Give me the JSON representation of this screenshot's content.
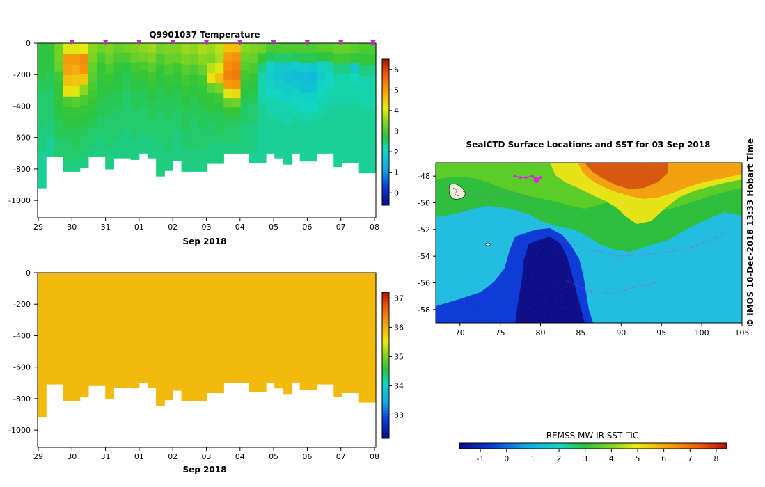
{
  "chart_data": [
    {
      "id": "temperature-section",
      "type": "heatmap",
      "title": "Q9901037  Temperature",
      "xlabel": "Sep 2018",
      "x_tick_labels": [
        "29",
        "30",
        "31",
        "01",
        "02",
        "03",
        "04",
        "05",
        "06",
        "07",
        "08"
      ],
      "y_tick_values": [
        0,
        -200,
        -400,
        -600,
        -800,
        -1000
      ],
      "ylim": [
        -1110,
        0
      ],
      "colorbar": {
        "min": -0.6,
        "max": 6.5,
        "ticks": [
          0,
          1,
          2,
          3,
          4,
          5,
          6
        ]
      },
      "profile_marker_days": [
        1,
        2,
        3,
        4,
        5,
        6,
        7,
        8,
        9,
        10,
        10.02
      ],
      "profile_bottoms": [
        -920,
        -720,
        -720,
        -815,
        -815,
        -790,
        -720,
        -720,
        -800,
        -730,
        -730,
        -740,
        -700,
        -730,
        -845,
        -810,
        -745,
        -815,
        -815,
        -815,
        -765,
        -765,
        -700,
        -700,
        -700,
        -760,
        -760,
        -700,
        -730,
        -770,
        -700,
        -750,
        -750,
        -700,
        -700,
        -785,
        -760,
        -760,
        -825,
        -825
      ],
      "profiles": [
        [
          2.7,
          2.7,
          2.7,
          2.6,
          2.5,
          2.5,
          2.5,
          2.4,
          2.4,
          2.3,
          2.3,
          2.3
        ],
        [
          2.8,
          2.7,
          2.7,
          2.6,
          2.6,
          2.5,
          2.5,
          2.5,
          2.4,
          2.4,
          2.3,
          2.3
        ],
        [
          3.3,
          3.3,
          3.2,
          2.9,
          2.8,
          2.8,
          2.7,
          2.7,
          2.6,
          2.6,
          2.5,
          2.5
        ],
        [
          4.0,
          5.0,
          4.9,
          4.6,
          4.2,
          3.0,
          2.8,
          2.7,
          2.6,
          2.5,
          2.5,
          2.4
        ],
        [
          4.0,
          5.0,
          4.8,
          4.5,
          4.0,
          3.1,
          2.8,
          2.7,
          2.6,
          2.6,
          2.5,
          2.4
        ],
        [
          4.1,
          5.2,
          5.1,
          4.5,
          3.5,
          3.0,
          2.8,
          2.7,
          2.6,
          2.5,
          2.5,
          2.4
        ],
        [
          3.5,
          3.4,
          3.2,
          3.1,
          3.0,
          2.9,
          2.8,
          2.7,
          2.6,
          2.5,
          2.5,
          2.4
        ],
        [
          3.3,
          3.0,
          2.8,
          2.8,
          2.7,
          2.7,
          2.6,
          2.6,
          2.5,
          2.5,
          2.4,
          2.4
        ],
        [
          3.4,
          3.2,
          3.0,
          2.8,
          2.7,
          2.6,
          2.6,
          2.5,
          2.5,
          2.5,
          2.4,
          2.4
        ],
        [
          3.2,
          3.0,
          2.8,
          2.7,
          2.7,
          2.6,
          2.6,
          2.5,
          2.5,
          2.5,
          2.4,
          2.4
        ],
        [
          3.3,
          3.0,
          2.7,
          2.6,
          2.6,
          2.5,
          2.5,
          2.5,
          2.5,
          2.4,
          2.4,
          2.4
        ],
        [
          3.4,
          3.2,
          2.9,
          2.8,
          2.7,
          2.6,
          2.6,
          2.5,
          2.5,
          2.5,
          2.4,
          2.4
        ],
        [
          3.5,
          3.3,
          3.0,
          2.8,
          2.7,
          2.6,
          2.6,
          2.5,
          2.5,
          2.5,
          2.4,
          2.4
        ],
        [
          3.6,
          3.4,
          3.1,
          2.9,
          2.8,
          2.7,
          2.6,
          2.6,
          2.5,
          2.5,
          2.4,
          2.4
        ],
        [
          3.3,
          3.0,
          2.8,
          2.7,
          2.6,
          2.6,
          2.5,
          2.5,
          2.5,
          2.4,
          2.4,
          2.4
        ],
        [
          3.4,
          3.2,
          3.0,
          2.8,
          2.7,
          2.6,
          2.6,
          2.5,
          2.5,
          2.5,
          2.4,
          2.4
        ],
        [
          3.4,
          3.2,
          2.9,
          2.8,
          2.7,
          2.6,
          2.6,
          2.5,
          2.5,
          2.4,
          2.4,
          2.4
        ],
        [
          3.6,
          3.4,
          3.1,
          2.9,
          2.8,
          2.7,
          2.6,
          2.6,
          2.5,
          2.5,
          2.4,
          2.4
        ],
        [
          3.5,
          3.3,
          3.0,
          2.8,
          2.7,
          2.6,
          2.6,
          2.5,
          2.5,
          2.5,
          2.4,
          2.4
        ],
        [
          3.7,
          3.5,
          3.2,
          2.9,
          2.8,
          2.7,
          2.6,
          2.6,
          2.5,
          2.5,
          2.4,
          2.4
        ],
        [
          3.6,
          3.4,
          3.8,
          4.2,
          3.2,
          2.8,
          2.7,
          2.6,
          2.5,
          2.5,
          2.4,
          2.4
        ],
        [
          3.8,
          3.7,
          4.0,
          4.6,
          3.4,
          2.9,
          2.7,
          2.6,
          2.6,
          2.5,
          2.4,
          2.4
        ],
        [
          4.6,
          5.0,
          5.2,
          5.3,
          5.0,
          4.0,
          3.2,
          2.8,
          2.6,
          2.5,
          2.5,
          2.4
        ],
        [
          4.6,
          5.1,
          5.3,
          5.4,
          5.1,
          4.3,
          3.3,
          2.8,
          2.6,
          2.5,
          2.5,
          2.4
        ],
        [
          3.5,
          3.3,
          3.1,
          2.9,
          2.8,
          2.7,
          2.6,
          2.5,
          2.5,
          2.4,
          2.4,
          2.4
        ],
        [
          3.4,
          3.2,
          3.0,
          2.8,
          2.7,
          2.6,
          2.5,
          2.5,
          2.4,
          2.4,
          2.4,
          2.3
        ],
        [
          3.3,
          2.8,
          2.4,
          2.2,
          2.2,
          2.2,
          2.3,
          2.3,
          2.3,
          2.3,
          2.3,
          2.3
        ],
        [
          3.0,
          2.6,
          2.0,
          1.9,
          2.0,
          2.1,
          2.2,
          2.2,
          2.3,
          2.3,
          2.3,
          2.3
        ],
        [
          3.0,
          2.5,
          1.8,
          1.8,
          1.9,
          2.1,
          2.2,
          2.2,
          2.3,
          2.3,
          2.3,
          2.3
        ],
        [
          3.0,
          2.5,
          1.8,
          1.7,
          1.9,
          2.0,
          2.2,
          2.2,
          2.3,
          2.3,
          2.3,
          2.3
        ],
        [
          3.0,
          2.6,
          1.9,
          1.6,
          1.8,
          2.0,
          2.1,
          2.2,
          2.3,
          2.3,
          2.3,
          2.3
        ],
        [
          3.0,
          2.6,
          1.9,
          1.6,
          1.7,
          2.0,
          2.1,
          2.2,
          2.3,
          2.3,
          2.3,
          2.3
        ],
        [
          3.0,
          2.6,
          1.8,
          1.5,
          1.7,
          2.0,
          2.1,
          2.2,
          2.3,
          2.3,
          2.3,
          2.3
        ],
        [
          3.1,
          2.7,
          2.0,
          1.9,
          2.0,
          2.1,
          2.2,
          2.2,
          2.3,
          2.3,
          2.3,
          2.3
        ],
        [
          3.1,
          2.8,
          2.2,
          2.1,
          2.1,
          2.2,
          2.2,
          2.3,
          2.3,
          2.3,
          2.3,
          2.3
        ],
        [
          3.2,
          2.9,
          2.4,
          2.2,
          2.2,
          2.2,
          2.3,
          2.3,
          2.3,
          2.3,
          2.3,
          2.3
        ],
        [
          3.2,
          2.9,
          2.4,
          2.2,
          2.2,
          2.2,
          2.3,
          2.3,
          2.3,
          2.3,
          2.3,
          2.3
        ],
        [
          3.1,
          2.8,
          1.8,
          2.1,
          2.2,
          2.2,
          2.3,
          2.3,
          2.3,
          2.3,
          2.3,
          2.3
        ],
        [
          3.0,
          2.8,
          2.4,
          2.2,
          2.2,
          2.2,
          2.3,
          2.3,
          2.3,
          2.3,
          2.3,
          2.3
        ],
        [
          3.0,
          2.8,
          2.4,
          2.2,
          2.2,
          2.2,
          2.3,
          2.3,
          2.3,
          2.3,
          2.3,
          2.3
        ]
      ]
    },
    {
      "id": "salinity-section",
      "type": "heatmap",
      "title": "",
      "xlabel": "Sep 2018",
      "x_tick_labels": [
        "29",
        "30",
        "31",
        "01",
        "02",
        "03",
        "04",
        "05",
        "06",
        "07",
        "08"
      ],
      "y_tick_values": [
        0,
        -200,
        -400,
        -600,
        -800,
        -1000
      ],
      "ylim": [
        -1110,
        0
      ],
      "colorbar": {
        "min": 32.2,
        "max": 37.2,
        "ticks": [
          33,
          34,
          35,
          36,
          37
        ]
      },
      "uniform_value": 35.9,
      "profile_bottoms": [
        -920,
        -710,
        -710,
        -815,
        -815,
        -790,
        -720,
        -720,
        -800,
        -730,
        -730,
        -735,
        -700,
        -730,
        -845,
        -810,
        -750,
        -815,
        -815,
        -815,
        -765,
        -765,
        -700,
        -700,
        -700,
        -760,
        -760,
        -700,
        -735,
        -775,
        -700,
        -745,
        -745,
        -710,
        -710,
        -790,
        -765,
        -765,
        -825,
        -825
      ]
    },
    {
      "id": "sst-map",
      "type": "heatmap",
      "title": "SealCTD Surface Locations and SST for 03 Sep 2018",
      "xlim": [
        67,
        105
      ],
      "ylim": [
        -59,
        -47
      ],
      "x_ticks": [
        70,
        75,
        80,
        85,
        90,
        95,
        100,
        105
      ],
      "y_ticks": [
        -48,
        -50,
        -52,
        -54,
        -56,
        -58
      ],
      "track_lonlat": [
        [
          76.8,
          -48
        ],
        [
          77.5,
          -48.1
        ],
        [
          78.2,
          -48.1
        ],
        [
          79,
          -48
        ],
        [
          79.5,
          -48.3
        ],
        [
          80,
          -48.1
        ]
      ],
      "colorbar": {
        "label": "REMSS MW-IR SST ☐C",
        "min": -1.8,
        "max": 8.4,
        "ticks": [
          -1,
          0,
          1,
          2,
          3,
          4,
          5,
          6,
          7,
          8
        ]
      }
    }
  ],
  "side_label": "© IMOS 10-Dec-2018 13:33 Hobart Time"
}
